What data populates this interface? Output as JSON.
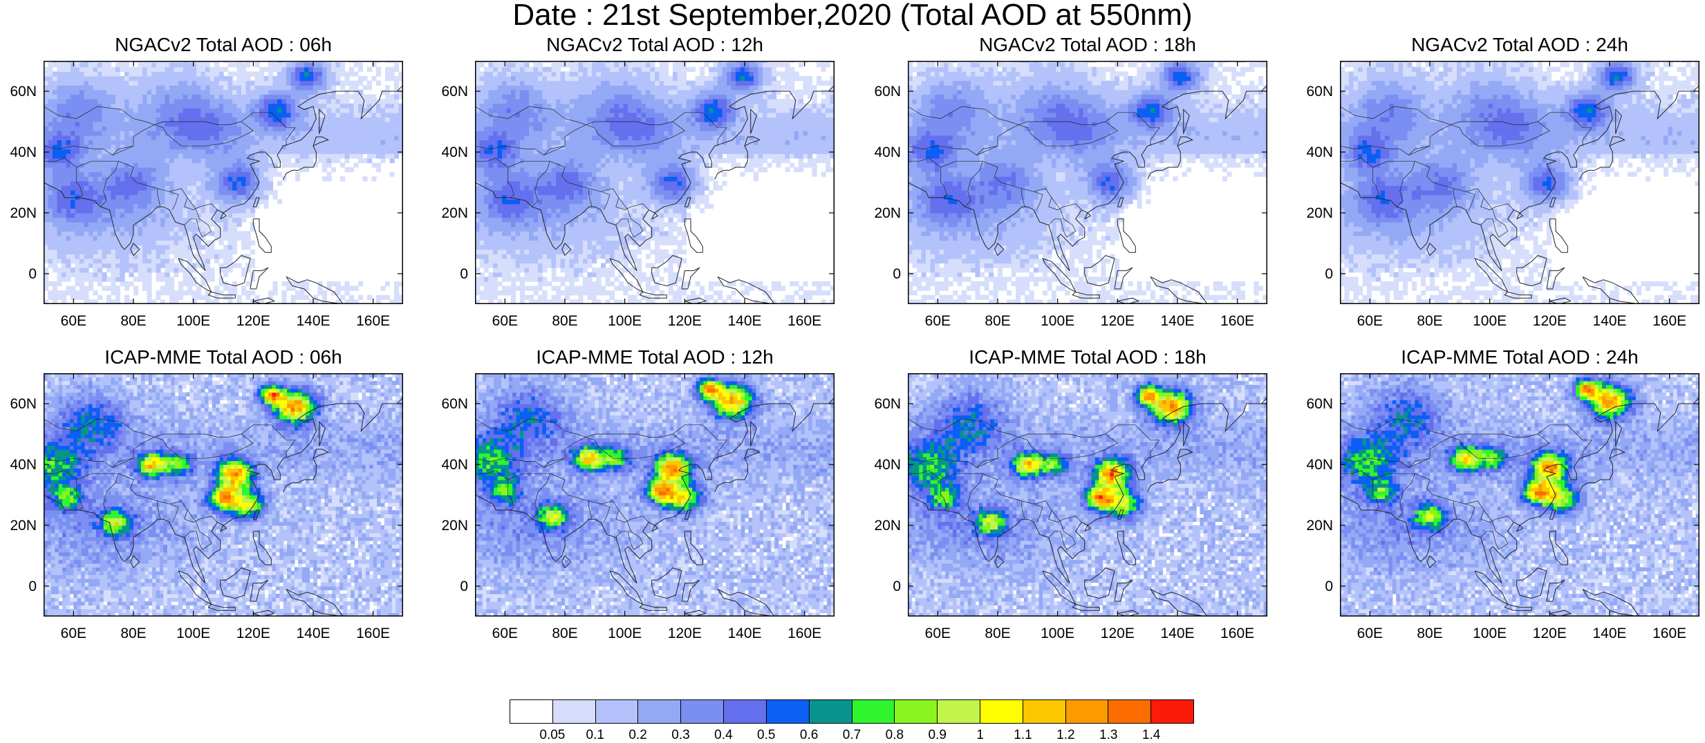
{
  "title": "Date : 21st September,2020 (Total AOD at 550nm)",
  "lat_ticks": [
    "60N",
    "40N",
    "20N",
    "0"
  ],
  "lon_ticks": [
    "60E",
    "80E",
    "100E",
    "120E",
    "140E",
    "160E"
  ],
  "panels": [
    {
      "title": "NGACv2 Total AOD : 06h",
      "model": "NGACv2",
      "hour": "06h"
    },
    {
      "title": "NGACv2 Total AOD : 12h",
      "model": "NGACv2",
      "hour": "12h"
    },
    {
      "title": "NGACv2 Total AOD : 18h",
      "model": "NGACv2",
      "hour": "18h"
    },
    {
      "title": "NGACv2 Total AOD : 24h",
      "model": "NGACv2",
      "hour": "24h"
    },
    {
      "title": "ICAP-MME Total AOD : 06h",
      "model": "ICAP-MME",
      "hour": "06h"
    },
    {
      "title": "ICAP-MME Total AOD : 12h",
      "model": "ICAP-MME",
      "hour": "12h"
    },
    {
      "title": "ICAP-MME Total AOD : 18h",
      "model": "ICAP-MME",
      "hour": "18h"
    },
    {
      "title": "ICAP-MME Total AOD : 24h",
      "model": "ICAP-MME",
      "hour": "24h"
    }
  ],
  "colorbar": {
    "labels": [
      "0.05",
      "0.1",
      "0.2",
      "0.3",
      "0.4",
      "0.5",
      "0.6",
      "0.7",
      "0.8",
      "0.9",
      "1",
      "1.1",
      "1.2",
      "1.3",
      "1.4"
    ],
    "colors": [
      "#ffffff",
      "#d6defc",
      "#b3c2fa",
      "#94a9f5",
      "#7b8ff2",
      "#6570ee",
      "#0a5ff5",
      "#06948c",
      "#2ef52e",
      "#8af51e",
      "#c2f54c",
      "#fefe00",
      "#fcc600",
      "#fd9a00",
      "#fb6d00",
      "#fb1b08"
    ]
  },
  "map_extent": {
    "lon": [
      50,
      170
    ],
    "lat": [
      -10,
      70
    ]
  }
}
